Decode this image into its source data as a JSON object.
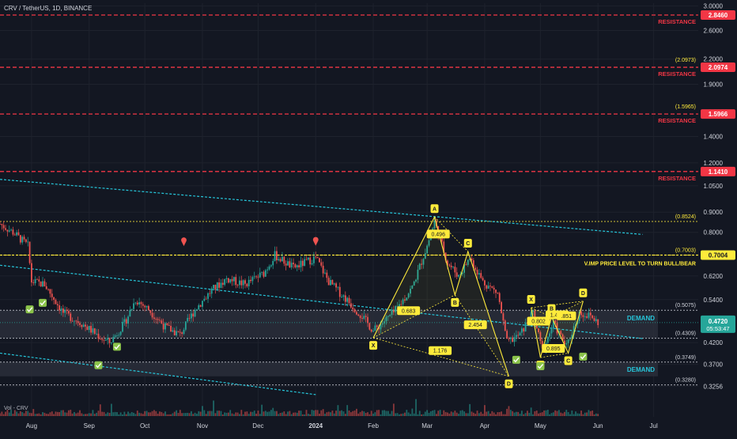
{
  "header": {
    "symbol_line": "CRV / TetherUS, 1D, BINANCE"
  },
  "volume_label": "Vol - CRV",
  "colors": {
    "background": "#131722",
    "resistance": "#f23645",
    "fib_level": "#ffeb3b",
    "channel": "#26c6da",
    "demand_zone": "#2a2e39",
    "demand_text": "#26c6da",
    "up_candle": "#26a69a",
    "down_candle": "#ef5350",
    "pattern": "#ffeb3b",
    "price_badge": "#26a69a",
    "check": "#8bc34a"
  },
  "chart_data": {
    "type": "candlestick",
    "exchange": "BINANCE",
    "symbol": "CRV / TetherUS",
    "interval": "1D",
    "y_scale": "log",
    "ylim": [
      0.3,
      3.05
    ],
    "y_ticks": [
      {
        "value": 3.0,
        "label": "3.0000"
      },
      {
        "value": 2.6,
        "label": "2.6000"
      },
      {
        "value": 2.2,
        "label": "2.2000"
      },
      {
        "value": 1.9,
        "label": "1.9000"
      },
      {
        "value": 1.4,
        "label": "1.4000"
      },
      {
        "value": 1.2,
        "label": "1.2000"
      },
      {
        "value": 1.05,
        "label": "1.0500"
      },
      {
        "value": 0.9,
        "label": "0.9000"
      },
      {
        "value": 0.8,
        "label": "0.8000"
      },
      {
        "value": 0.62,
        "label": "0.6200"
      },
      {
        "value": 0.54,
        "label": "0.5400"
      },
      {
        "value": 0.42,
        "label": "0.4200"
      },
      {
        "value": 0.37,
        "label": "0.3700"
      },
      {
        "value": 0.3256,
        "label": "0.3256"
      }
    ],
    "x_ticks": [
      {
        "date": "2023-08-01",
        "label": "Aug"
      },
      {
        "date": "2023-09-01",
        "label": "Sep"
      },
      {
        "date": "2023-10-01",
        "label": "Oct"
      },
      {
        "date": "2023-11-01",
        "label": "Nov"
      },
      {
        "date": "2023-12-01",
        "label": "Dec"
      },
      {
        "date": "2024-01-01",
        "label": "2024"
      },
      {
        "date": "2024-02-01",
        "label": "Feb"
      },
      {
        "date": "2024-03-01",
        "label": "Mar"
      },
      {
        "date": "2024-04-01",
        "label": "Apr"
      },
      {
        "date": "2024-05-01",
        "label": "May"
      },
      {
        "date": "2024-06-01",
        "label": "Jun"
      },
      {
        "date": "2024-07-01",
        "label": "Jul"
      }
    ],
    "x_range": [
      "2023-07-15",
      "2024-07-25"
    ],
    "resistance_levels": [
      {
        "price": 2.846,
        "badge": "2.8460",
        "label": "RESISTANCE"
      },
      {
        "price": 2.0974,
        "badge": "2.0974",
        "fib": "(2.0973)",
        "label": "RESISTANCE"
      },
      {
        "price": 1.5966,
        "badge": "1.5966",
        "fib": "(1.5965)",
        "label": "RESISTANCE"
      },
      {
        "price": 1.141,
        "badge": "1.1410",
        "label": "RESISTANCE"
      }
    ],
    "fib_levels": [
      {
        "price": 0.8524,
        "label": "(0.8524)"
      },
      {
        "price": 0.7003,
        "label": "(0.7003)"
      },
      {
        "price": 0.5075,
        "label": "(0.5075)"
      },
      {
        "price": 0.4309,
        "label": "(0.4309)"
      },
      {
        "price": 0.3749,
        "label": "(0.3749)"
      },
      {
        "price": 0.328,
        "label": "(0.3280)"
      }
    ],
    "key_level": {
      "price": 0.7004,
      "badge": "0.7004",
      "label": "V.IMP PRICE LEVEL TO TURN BULL/BEAR"
    },
    "demand_zones": [
      {
        "top": 0.5075,
        "bottom": 0.4309,
        "label": "DEMAND"
      },
      {
        "top": 0.3749,
        "bottom": 0.345,
        "label": "DEMAND"
      }
    ],
    "current_price": {
      "value": "0.4720",
      "countdown": "05:53:47"
    },
    "channel_lines": [
      {
        "from": [
          "2023-07-15",
          1.09
        ],
        "to": [
          "2024-06-25",
          0.79
        ]
      },
      {
        "from": [
          "2023-07-15",
          0.66
        ],
        "to": [
          "2024-06-25",
          0.43
        ]
      },
      {
        "from": [
          "2023-07-15",
          0.395
        ],
        "to": [
          "2024-01-01",
          0.31
        ]
      }
    ],
    "pattern_1": {
      "points": [
        {
          "label": "X",
          "date": "2024-02-01",
          "price": 0.432
        },
        {
          "label": "A",
          "date": "2024-03-05",
          "price": 0.875
        },
        {
          "label": "B",
          "date": "2024-03-16",
          "price": 0.555
        },
        {
          "label": "C",
          "date": "2024-03-23",
          "price": 0.715
        },
        {
          "label": "D",
          "date": "2024-04-14",
          "price": 0.345
        }
      ],
      "ratios": [
        {
          "label": "0.496",
          "date": "2024-03-07",
          "price": 0.79
        },
        {
          "label": "0.683",
          "date": "2024-02-20",
          "price": 0.505
        },
        {
          "label": "1.176",
          "date": "2024-03-08",
          "price": 0.4
        },
        {
          "label": "2.454",
          "date": "2024-03-27",
          "price": 0.465
        }
      ]
    },
    "pattern_2": {
      "points": [
        {
          "label": "X",
          "date": "2024-04-26",
          "price": 0.515
        },
        {
          "label": "A",
          "date": "2024-05-01",
          "price": 0.385
        },
        {
          "label": "B",
          "date": "2024-05-07",
          "price": 0.488
        },
        {
          "label": "C",
          "date": "2024-05-16",
          "price": 0.395
        },
        {
          "label": "D",
          "date": "2024-05-24",
          "price": 0.535
        }
      ],
      "ratios": [
        {
          "label": "0.802",
          "date": "2024-04-30",
          "price": 0.475
        },
        {
          "label": "1.412",
          "date": "2024-05-10",
          "price": 0.493
        },
        {
          "label": ".851",
          "date": "2024-05-15",
          "price": 0.49
        },
        {
          "label": "0.895",
          "date": "2024-05-08",
          "price": 0.405
        }
      ]
    },
    "up_markers": [
      {
        "date": "2023-10-22",
        "price": 0.738
      },
      {
        "date": "2024-01-01",
        "price": 0.74
      }
    ],
    "check_marks": [
      {
        "date": "2023-07-31",
        "price": 0.51
      },
      {
        "date": "2023-08-07",
        "price": 0.53
      },
      {
        "date": "2023-09-16",
        "price": 0.41
      },
      {
        "date": "2023-09-06",
        "price": 0.368
      },
      {
        "date": "2024-04-18",
        "price": 0.38
      },
      {
        "date": "2024-05-01",
        "price": 0.366
      },
      {
        "date": "2024-05-24",
        "price": 0.387
      }
    ],
    "price_path": [
      {
        "date": "2023-07-15",
        "price": 0.84
      },
      {
        "date": "2023-07-22",
        "price": 0.8
      },
      {
        "date": "2023-07-30",
        "price": 0.74
      },
      {
        "date": "2023-08-01",
        "price": 0.6
      },
      {
        "date": "2023-08-08",
        "price": 0.59
      },
      {
        "date": "2023-08-18",
        "price": 0.5
      },
      {
        "date": "2023-08-28",
        "price": 0.47
      },
      {
        "date": "2023-09-08",
        "price": 0.43
      },
      {
        "date": "2023-09-12",
        "price": 0.42
      },
      {
        "date": "2023-09-20",
        "price": 0.47
      },
      {
        "date": "2023-09-26",
        "price": 0.54
      },
      {
        "date": "2023-10-03",
        "price": 0.51
      },
      {
        "date": "2023-10-12",
        "price": 0.46
      },
      {
        "date": "2023-10-20",
        "price": 0.44
      },
      {
        "date": "2023-10-28",
        "price": 0.51
      },
      {
        "date": "2023-11-06",
        "price": 0.57
      },
      {
        "date": "2023-11-14",
        "price": 0.61
      },
      {
        "date": "2023-11-24",
        "price": 0.59
      },
      {
        "date": "2023-12-04",
        "price": 0.63
      },
      {
        "date": "2023-12-10",
        "price": 0.7
      },
      {
        "date": "2023-12-20",
        "price": 0.65
      },
      {
        "date": "2024-01-01",
        "price": 0.69
      },
      {
        "date": "2024-01-08",
        "price": 0.6
      },
      {
        "date": "2024-01-16",
        "price": 0.55
      },
      {
        "date": "2024-01-26",
        "price": 0.49
      },
      {
        "date": "2024-02-01",
        "price": 0.45
      },
      {
        "date": "2024-02-12",
        "price": 0.5
      },
      {
        "date": "2024-02-22",
        "price": 0.58
      },
      {
        "date": "2024-03-01",
        "price": 0.74
      },
      {
        "date": "2024-03-05",
        "price": 0.85
      },
      {
        "date": "2024-03-12",
        "price": 0.67
      },
      {
        "date": "2024-03-18",
        "price": 0.62
      },
      {
        "date": "2024-03-24",
        "price": 0.69
      },
      {
        "date": "2024-03-31",
        "price": 0.6
      },
      {
        "date": "2024-04-08",
        "price": 0.56
      },
      {
        "date": "2024-04-13",
        "price": 0.42
      },
      {
        "date": "2024-04-20",
        "price": 0.44
      },
      {
        "date": "2024-04-27",
        "price": 0.5
      },
      {
        "date": "2024-05-02",
        "price": 0.4
      },
      {
        "date": "2024-05-08",
        "price": 0.47
      },
      {
        "date": "2024-05-15",
        "price": 0.41
      },
      {
        "date": "2024-05-22",
        "price": 0.5
      },
      {
        "date": "2024-05-28",
        "price": 0.49
      },
      {
        "date": "2024-06-01",
        "price": 0.472
      }
    ]
  }
}
